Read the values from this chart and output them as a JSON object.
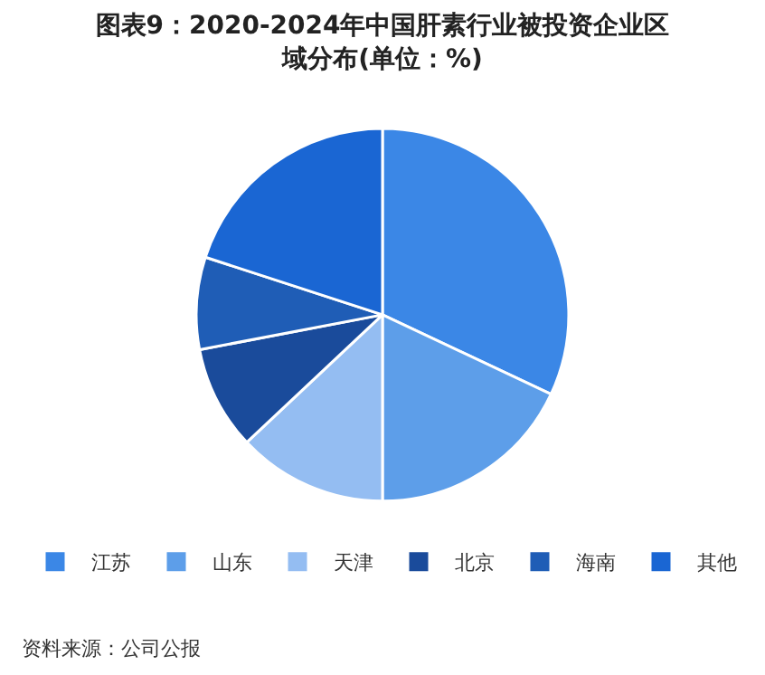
{
  "chart_data": {
    "type": "pie",
    "title": "图表9：2020-2024年中国肝素行业被投资企业区域分布(单位：%)",
    "categories": [
      "江苏",
      "山东",
      "天津",
      "北京",
      "海南",
      "其他"
    ],
    "values": [
      32,
      18,
      13,
      9,
      8,
      20
    ],
    "colors": [
      "#3b87e6",
      "#5d9ee9",
      "#94bdf2",
      "#1a4b9b",
      "#1f5db6",
      "#1a66d3"
    ],
    "legend": "bottom",
    "annotations": [
      "资料来源：公司公报"
    ]
  }
}
